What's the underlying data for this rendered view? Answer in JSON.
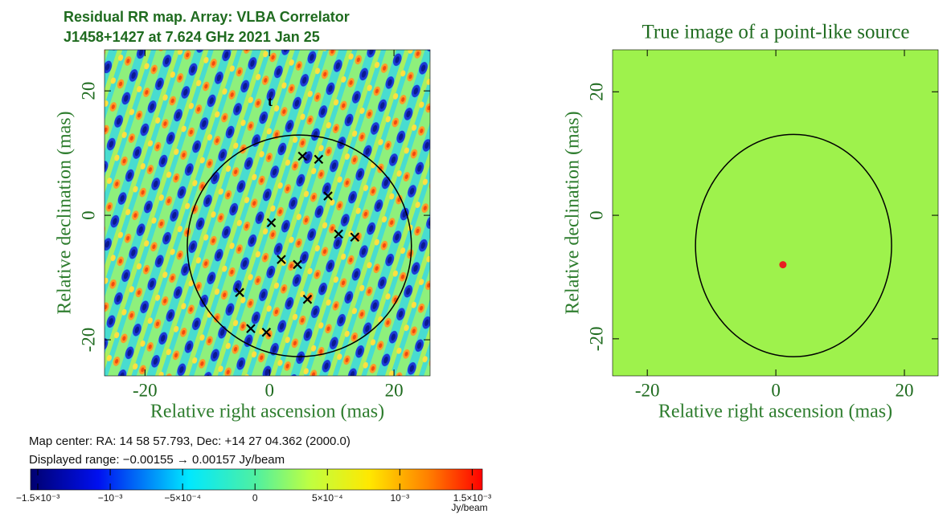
{
  "chart_data": [
    {
      "type": "heatmap",
      "title": "Residual RR map.  Array:  VLBA Correlator",
      "subtitle": "J1458+1427 at 7.624 GHz 2021 Jan 25",
      "xlabel": "Relative right ascension (mas)",
      "ylabel": "Relative declination (mas)",
      "xlim": [
        -26.5,
        25.8
      ],
      "ylim": [
        -25.8,
        26.6
      ],
      "xticks": [
        -20,
        0,
        20
      ],
      "yticks": [
        -20,
        0,
        20
      ],
      "markers": {
        "marker": "x",
        "color": "#000000",
        "x": [
          5.3,
          7.9,
          9.4,
          0.3,
          11.1,
          13.7,
          1.9,
          4.5,
          -4.8,
          6.1,
          -3.0,
          -0.5
        ],
        "y": [
          9.5,
          9.0,
          3.1,
          -1.2,
          -3.0,
          -3.5,
          -7.1,
          -7.9,
          -12.4,
          -13.5,
          -18.2,
          -18.8
        ]
      },
      "circle": {
        "center": [
          4.8,
          -4.9
        ],
        "radius": [
          18,
          17.8
        ],
        "color": "#000000"
      },
      "annotations": [
        {
          "text": "t",
          "x": 0.1,
          "y": 18.1
        }
      ],
      "notes": [
        "Map center:  RA: 14 58 57.793,  Dec: +14 27 04.362 (2000.0)",
        "Displayed range: −0.00155 → 0.00157 Jy/beam"
      ],
      "colorbar": {
        "label": "Jy/beam",
        "lim": [
          -0.00155,
          0.00157
        ],
        "ticks": [
          {
            "value": -0.0015,
            "label": "−1.5×10⁻³"
          },
          {
            "value": -0.001,
            "label": "−10⁻³"
          },
          {
            "value": -0.0005,
            "label": "−5×10⁻⁴"
          },
          0,
          {
            "value": 0.0005,
            "label": "5×10⁻⁴"
          },
          {
            "value": 0.001,
            "label": "10⁻³"
          },
          {
            "value": 0.0015,
            "label": "1.5×10⁻³"
          }
        ]
      }
    },
    {
      "type": "image",
      "title": "True image of a point-like source",
      "xlabel": "Relative right ascension (mas)",
      "ylabel": "Relative declination (mas)",
      "xlim": [
        -25.4,
        25.25
      ],
      "ylim": [
        -26.0,
        26.8
      ],
      "xticks": [
        -20,
        0,
        20
      ],
      "yticks": [
        -20,
        0,
        20
      ],
      "background": "#9ef24c",
      "points": {
        "color": "#e82020",
        "x": [
          1.1
        ],
        "y": [
          -8.0
        ]
      },
      "circle": {
        "center": [
          2.75,
          -4.9
        ],
        "radius": [
          15.25,
          18
        ],
        "color": "#000000"
      }
    }
  ]
}
